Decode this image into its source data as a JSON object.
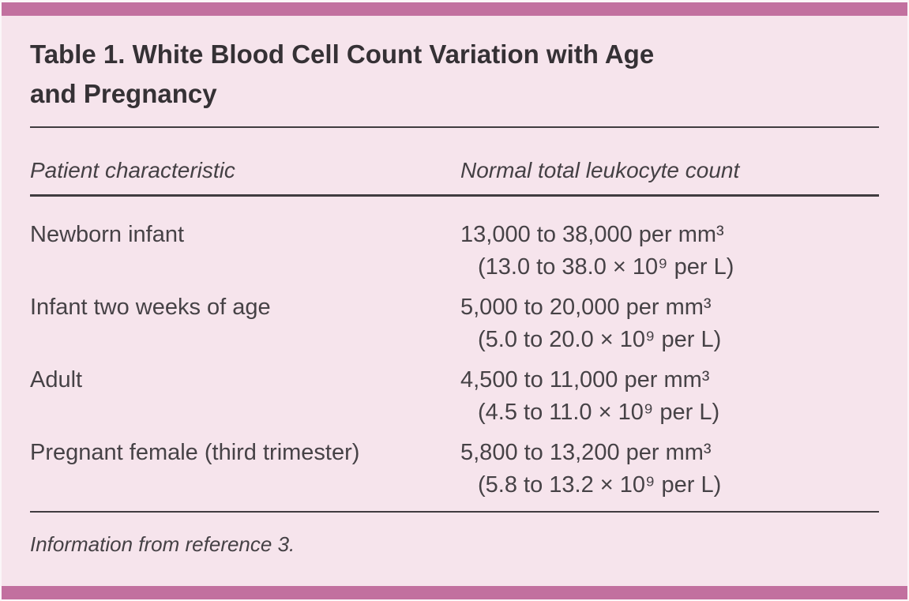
{
  "figure": {
    "title_line1": "Table 1. White Blood Cell Count Variation with Age",
    "title_line2": "and Pregnancy",
    "footnote": "Information from reference 3."
  },
  "table": {
    "columns": [
      {
        "label": "Patient characteristic"
      },
      {
        "label": "Normal total leukocyte count"
      }
    ],
    "rows": [
      {
        "characteristic": "Newborn infant",
        "count_conventional": "13,000 to 38,000 per mm³",
        "count_si": "(13.0 to 38.0 × 10⁹ per L)"
      },
      {
        "characteristic": "Infant two weeks of age",
        "count_conventional": "5,000 to 20,000 per mm³",
        "count_si": "(5.0 to 20.0 × 10⁹ per L)"
      },
      {
        "characteristic": "Adult",
        "count_conventional": "4,500 to 11,000 per mm³",
        "count_si": "(4.5 to 11.0 × 10⁹ per L)"
      },
      {
        "characteristic": "Pregnant female (third trimester)",
        "count_conventional": "5,800 to 13,200 per mm³",
        "count_si": "(5.8 to 13.2 × 10⁹ per L)"
      }
    ]
  },
  "colors": {
    "accent_bar": "#c2709f",
    "panel_background": "#f6e4ec",
    "text": "#454145"
  }
}
